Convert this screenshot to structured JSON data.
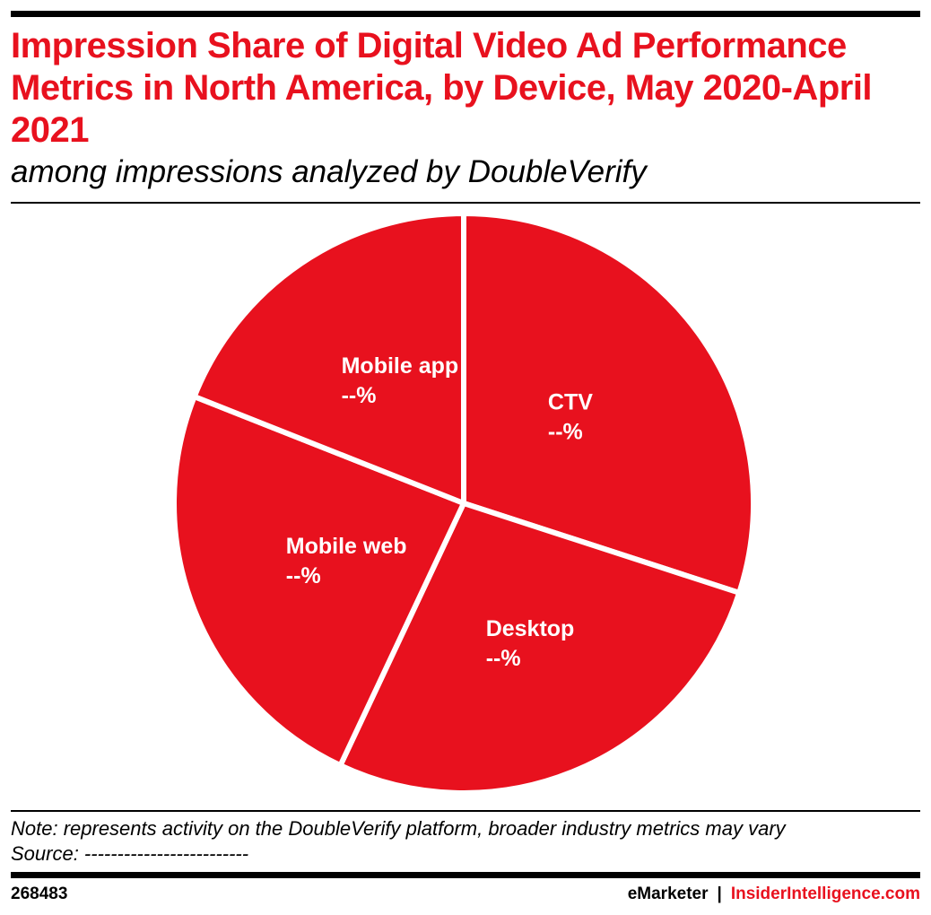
{
  "colors": {
    "accent": "#e8111e",
    "slice_fill": "#e8111e",
    "slice_border": "#ffffff",
    "rule": "#000000"
  },
  "header": {
    "title": "Impression Share of Digital Video Ad Performance Metrics in North America, by Device, May 2020-April 2021",
    "subtitle": "among impressions analyzed by DoubleVerify"
  },
  "chart_data": {
    "type": "pie",
    "slices": [
      {
        "name": "CTV",
        "value_label": "--%",
        "value": 30
      },
      {
        "name": "Desktop",
        "value_label": "--%",
        "value": 27
      },
      {
        "name": "Mobile web",
        "value_label": "--%",
        "value": 24
      },
      {
        "name": "Mobile app",
        "value_label": "--%",
        "value": 19
      }
    ],
    "start_angle_deg": 0,
    "direction": "clockwise"
  },
  "footer": {
    "note": "Note: represents activity on the DoubleVerify platform, broader industry metrics may vary",
    "source": "Source: -------------------------",
    "chart_id": "268483",
    "brand_left": "eMarketer",
    "brand_separator": "|",
    "brand_right": "InsiderIntelligence.com"
  }
}
